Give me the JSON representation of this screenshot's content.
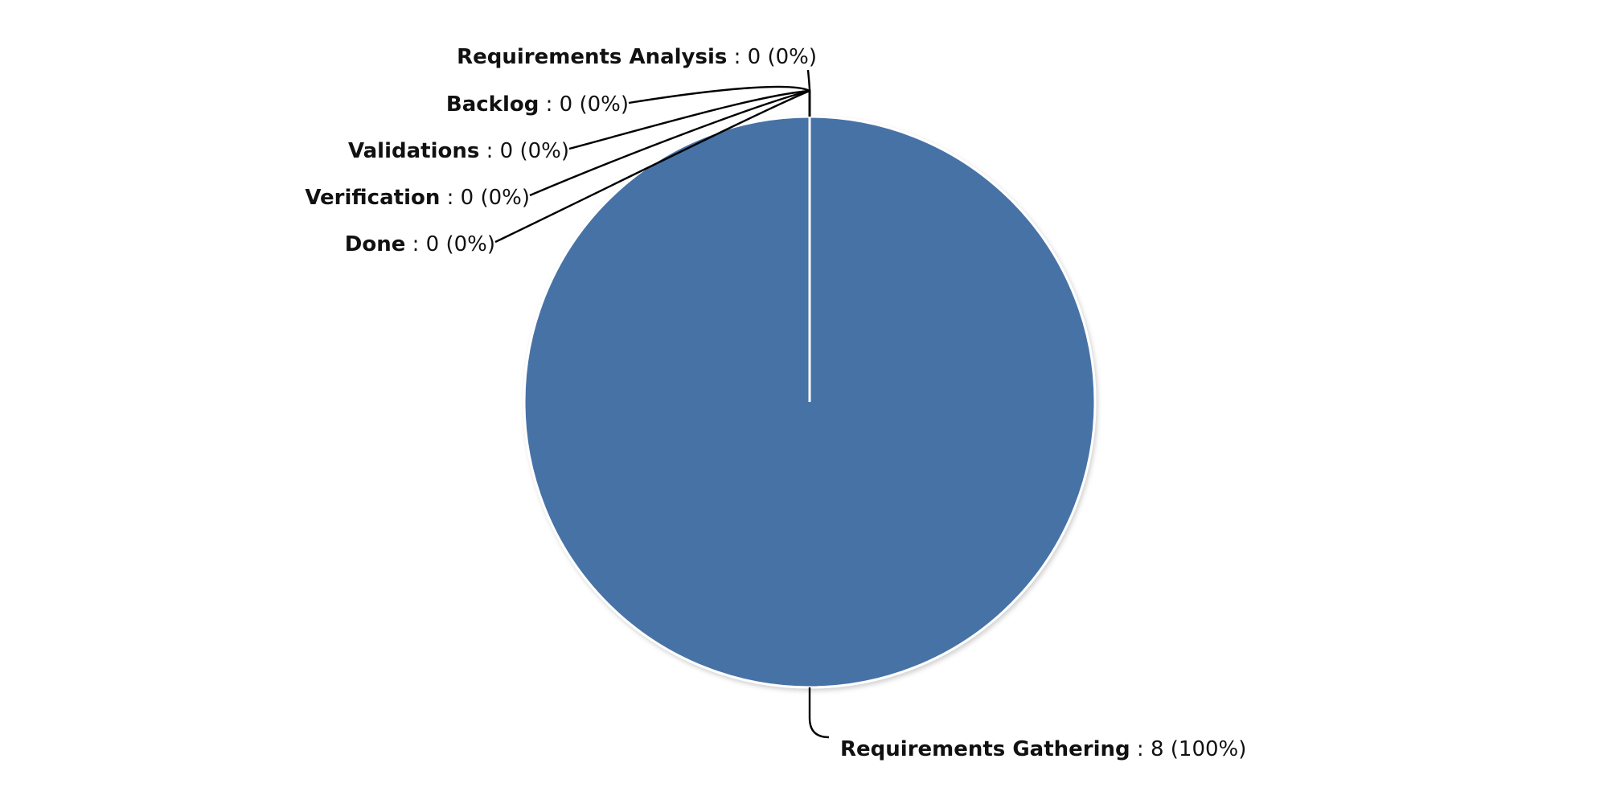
{
  "chart_data": {
    "type": "pie",
    "title": "",
    "slices": [
      {
        "name": "Requirements Gathering",
        "value": 8,
        "percent_label": "8 (100%)",
        "color": "#4672a6"
      },
      {
        "name": "Requirements Analysis",
        "value": 0,
        "percent_label": "0 (0%)",
        "color": "#aa4643"
      },
      {
        "name": "Backlog",
        "value": 0,
        "percent_label": "0 (0%)",
        "color": "#89a54e"
      },
      {
        "name": "Validations",
        "value": 0,
        "percent_label": "0 (0%)",
        "color": "#71588f"
      },
      {
        "name": "Verification",
        "value": 0,
        "percent_label": "0 (0%)",
        "color": "#4198af"
      },
      {
        "name": "Done",
        "value": 0,
        "percent_label": "0 (0%)",
        "color": "#db843d"
      }
    ],
    "legend": false
  }
}
